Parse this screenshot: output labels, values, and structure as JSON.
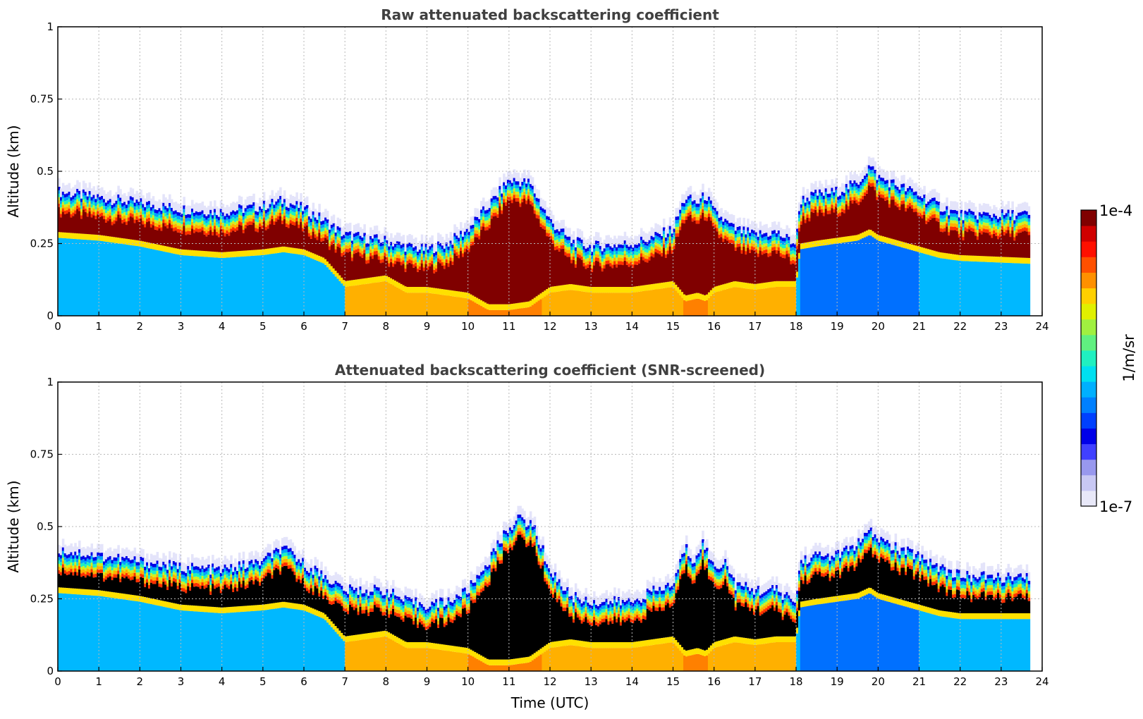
{
  "chart_data": [
    {
      "type": "heatmap",
      "title": "Raw attenuated backscattering coefficient",
      "xlabel": "",
      "ylabel": "Altitude (km)",
      "xlim": [
        0,
        24
      ],
      "ylim": [
        0,
        1
      ],
      "xticks": [
        "0",
        "1",
        "2",
        "3",
        "4",
        "5",
        "6",
        "7",
        "8",
        "9",
        "10",
        "11",
        "12",
        "13",
        "14",
        "15",
        "16",
        "17",
        "18",
        "19",
        "20",
        "21",
        "22",
        "23",
        "24"
      ],
      "yticks": [
        "0",
        "0.25",
        "0.5",
        "0.75",
        "1"
      ],
      "grid": true,
      "data_end_hour": 23.7,
      "layer_top_km": [
        [
          0,
          0.43
        ],
        [
          1,
          0.41
        ],
        [
          2,
          0.39
        ],
        [
          3,
          0.37
        ],
        [
          4,
          0.36
        ],
        [
          5,
          0.38
        ],
        [
          5.5,
          0.4
        ],
        [
          6,
          0.37
        ],
        [
          6.5,
          0.33
        ],
        [
          7,
          0.28
        ],
        [
          8,
          0.26
        ],
        [
          8.5,
          0.24
        ],
        [
          9,
          0.23
        ],
        [
          9.5,
          0.25
        ],
        [
          10,
          0.3
        ],
        [
          10.5,
          0.38
        ],
        [
          11,
          0.47
        ],
        [
          11.5,
          0.46
        ],
        [
          12,
          0.33
        ],
        [
          12.5,
          0.26
        ],
        [
          13,
          0.24
        ],
        [
          14,
          0.25
        ],
        [
          14.5,
          0.27
        ],
        [
          15,
          0.3
        ],
        [
          15.3,
          0.41
        ],
        [
          15.6,
          0.39
        ],
        [
          15.8,
          0.42
        ],
        [
          16,
          0.36
        ],
        [
          16.5,
          0.3
        ],
        [
          17,
          0.28
        ],
        [
          17.5,
          0.29
        ],
        [
          18,
          0.25
        ],
        [
          18.1,
          0.4
        ],
        [
          18.5,
          0.42
        ],
        [
          19,
          0.43
        ],
        [
          19.5,
          0.46
        ],
        [
          19.8,
          0.52
        ],
        [
          20,
          0.48
        ],
        [
          20.5,
          0.45
        ],
        [
          21,
          0.42
        ],
        [
          21.5,
          0.38
        ],
        [
          22,
          0.35
        ],
        [
          23.7,
          0.35
        ]
      ],
      "layer_base_km": [
        [
          0,
          0.27
        ],
        [
          1,
          0.26
        ],
        [
          2,
          0.24
        ],
        [
          3,
          0.21
        ],
        [
          4,
          0.2
        ],
        [
          5,
          0.21
        ],
        [
          5.5,
          0.22
        ],
        [
          6,
          0.21
        ],
        [
          6.5,
          0.18
        ],
        [
          7,
          0.1
        ],
        [
          8,
          0.12
        ],
        [
          8.5,
          0.08
        ],
        [
          9,
          0.08
        ],
        [
          9.5,
          0.07
        ],
        [
          10,
          0.06
        ],
        [
          10.5,
          0.02
        ],
        [
          11,
          0.02
        ],
        [
          11.5,
          0.03
        ],
        [
          12,
          0.08
        ],
        [
          12.5,
          0.09
        ],
        [
          13,
          0.08
        ],
        [
          14,
          0.08
        ],
        [
          14.5,
          0.09
        ],
        [
          15,
          0.1
        ],
        [
          15.3,
          0.05
        ],
        [
          15.6,
          0.06
        ],
        [
          15.8,
          0.05
        ],
        [
          16,
          0.08
        ],
        [
          16.5,
          0.1
        ],
        [
          17,
          0.09
        ],
        [
          17.5,
          0.1
        ],
        [
          18,
          0.1
        ],
        [
          18.1,
          0.23
        ],
        [
          18.5,
          0.24
        ],
        [
          19,
          0.25
        ],
        [
          19.5,
          0.26
        ],
        [
          19.8,
          0.28
        ],
        [
          20,
          0.26
        ],
        [
          20.5,
          0.24
        ],
        [
          21,
          0.22
        ],
        [
          21.5,
          0.2
        ],
        [
          22,
          0.19
        ],
        [
          23.7,
          0.18
        ]
      ]
    },
    {
      "type": "heatmap",
      "title": "Attenuated backscattering coefficient (SNR-screened)",
      "xlabel": "Time (UTC)",
      "ylabel": "Altitude (km)",
      "xlim": [
        0,
        24
      ],
      "ylim": [
        0,
        1
      ],
      "xticks": [
        "0",
        "1",
        "2",
        "3",
        "4",
        "5",
        "6",
        "7",
        "8",
        "9",
        "10",
        "11",
        "12",
        "13",
        "14",
        "15",
        "16",
        "17",
        "18",
        "19",
        "20",
        "21",
        "22",
        "23",
        "24"
      ],
      "yticks": [
        "0",
        "0.25",
        "0.5",
        "0.75",
        "1"
      ],
      "grid": true,
      "data_end_hour": 23.7,
      "saturated_color": "#000000",
      "layer_top_km": [
        [
          0,
          0.42
        ],
        [
          1,
          0.4
        ],
        [
          2,
          0.38
        ],
        [
          3,
          0.36
        ],
        [
          4,
          0.35
        ],
        [
          5,
          0.38
        ],
        [
          5.4,
          0.42
        ],
        [
          5.7,
          0.41
        ],
        [
          6,
          0.37
        ],
        [
          6.5,
          0.33
        ],
        [
          7,
          0.28
        ],
        [
          8,
          0.28
        ],
        [
          8.5,
          0.24
        ],
        [
          9,
          0.23
        ],
        [
          9.5,
          0.24
        ],
        [
          10,
          0.28
        ],
        [
          10.5,
          0.38
        ],
        [
          11,
          0.5
        ],
        [
          11.3,
          0.53
        ],
        [
          11.6,
          0.5
        ],
        [
          12,
          0.35
        ],
        [
          12.5,
          0.26
        ],
        [
          13,
          0.24
        ],
        [
          14,
          0.24
        ],
        [
          14.4,
          0.27
        ],
        [
          15,
          0.3
        ],
        [
          15.3,
          0.43
        ],
        [
          15.5,
          0.38
        ],
        [
          15.7,
          0.45
        ],
        [
          16,
          0.36
        ],
        [
          16.3,
          0.38
        ],
        [
          16.5,
          0.3
        ],
        [
          17,
          0.28
        ],
        [
          17.5,
          0.28
        ],
        [
          18,
          0.24
        ],
        [
          18.1,
          0.38
        ],
        [
          18.5,
          0.4
        ],
        [
          19,
          0.4
        ],
        [
          19.5,
          0.44
        ],
        [
          19.8,
          0.48
        ],
        [
          20,
          0.46
        ],
        [
          20.5,
          0.42
        ],
        [
          21,
          0.4
        ],
        [
          21.5,
          0.36
        ],
        [
          22,
          0.33
        ],
        [
          23.7,
          0.32
        ]
      ],
      "layer_base_km": [
        [
          0,
          0.27
        ],
        [
          1,
          0.26
        ],
        [
          2,
          0.24
        ],
        [
          3,
          0.21
        ],
        [
          4,
          0.2
        ],
        [
          5,
          0.21
        ],
        [
          5.5,
          0.22
        ],
        [
          6,
          0.21
        ],
        [
          6.5,
          0.18
        ],
        [
          7,
          0.1
        ],
        [
          8,
          0.12
        ],
        [
          8.5,
          0.08
        ],
        [
          9,
          0.08
        ],
        [
          9.5,
          0.07
        ],
        [
          10,
          0.06
        ],
        [
          10.5,
          0.02
        ],
        [
          11,
          0.02
        ],
        [
          11.5,
          0.03
        ],
        [
          12,
          0.08
        ],
        [
          12.5,
          0.09
        ],
        [
          13,
          0.08
        ],
        [
          14,
          0.08
        ],
        [
          14.5,
          0.09
        ],
        [
          15,
          0.1
        ],
        [
          15.3,
          0.05
        ],
        [
          15.6,
          0.06
        ],
        [
          15.8,
          0.05
        ],
        [
          16,
          0.08
        ],
        [
          16.5,
          0.1
        ],
        [
          17,
          0.09
        ],
        [
          17.5,
          0.1
        ],
        [
          18,
          0.1
        ],
        [
          18.1,
          0.22
        ],
        [
          18.5,
          0.23
        ],
        [
          19,
          0.24
        ],
        [
          19.5,
          0.25
        ],
        [
          19.8,
          0.27
        ],
        [
          20,
          0.25
        ],
        [
          20.5,
          0.23
        ],
        [
          21,
          0.21
        ],
        [
          21.5,
          0.19
        ],
        [
          22,
          0.18
        ],
        [
          23.7,
          0.18
        ]
      ]
    }
  ],
  "colorbar": {
    "max_label": "1e-4",
    "min_label": "1e-7",
    "label": "1/m/sr",
    "colors": [
      "#e8e8f8",
      "#c8c8f4",
      "#9898ee",
      "#4040ff",
      "#0000e8",
      "#0040ff",
      "#0080ff",
      "#00b0ff",
      "#00e0f0",
      "#20f0c0",
      "#60f080",
      "#a0f040",
      "#e0f000",
      "#ffd000",
      "#ff9000",
      "#ff5000",
      "#ff1000",
      "#d00000",
      "#800000"
    ]
  }
}
